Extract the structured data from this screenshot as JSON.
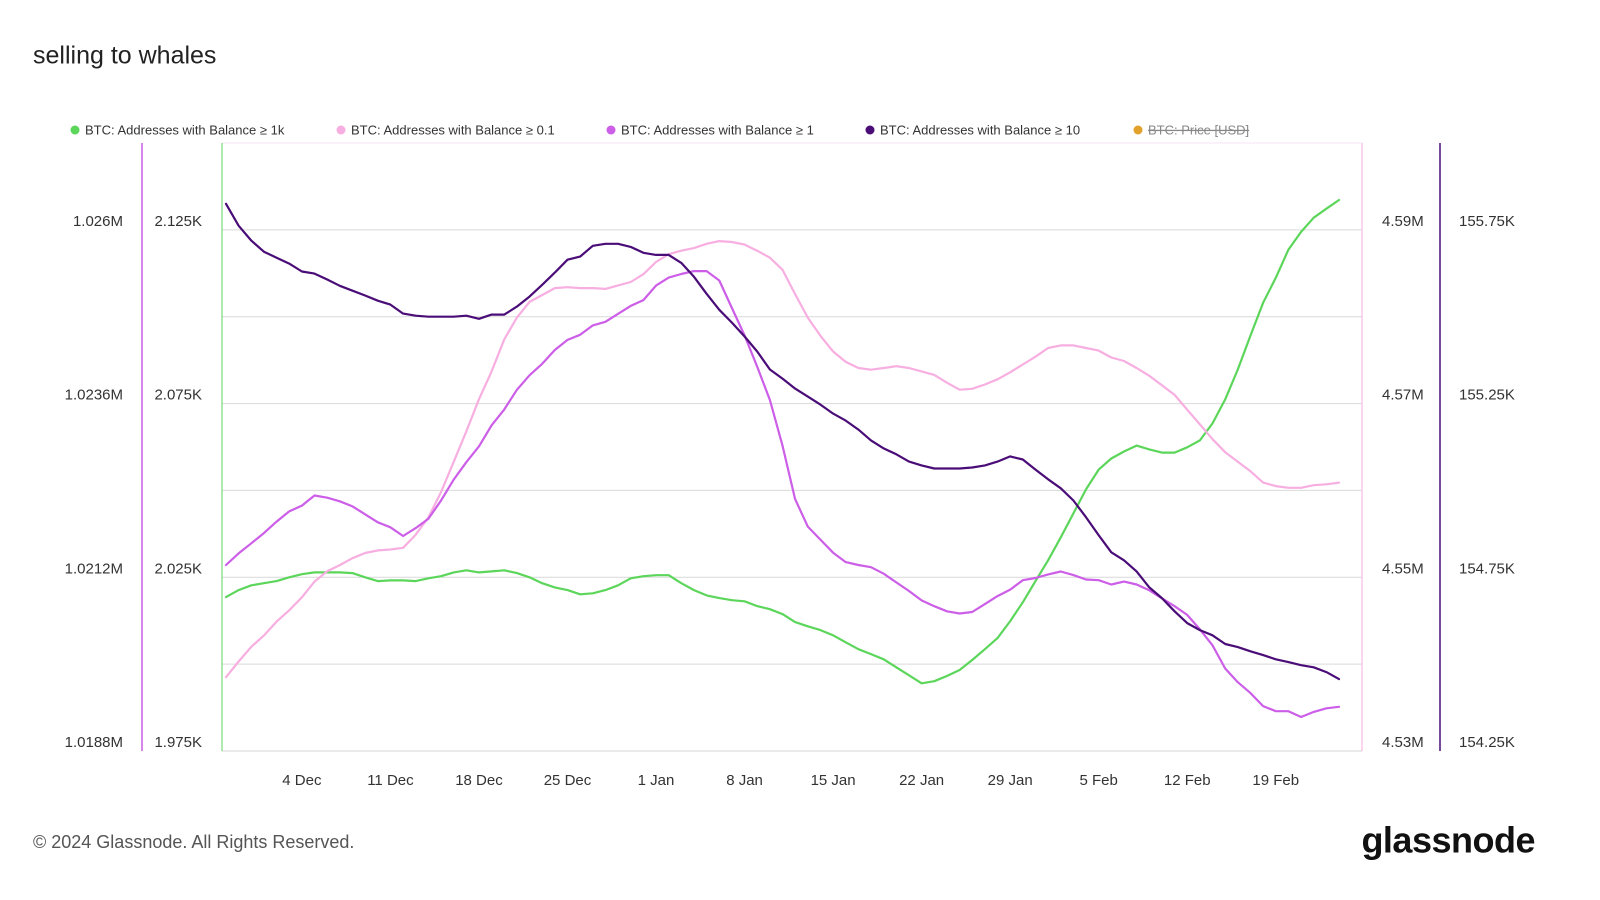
{
  "chart_data": {
    "type": "line",
    "title": "selling to whales",
    "categories": [
      null,
      null,
      null,
      null,
      null,
      null,
      "4 Dec",
      null,
      null,
      null,
      null,
      null,
      null,
      "11 Dec",
      null,
      null,
      null,
      null,
      null,
      null,
      "18 Dec",
      null,
      null,
      null,
      null,
      null,
      null,
      "25 Dec",
      null,
      null,
      null,
      null,
      null,
      null,
      "1 Jan",
      null,
      null,
      null,
      null,
      null,
      null,
      "8 Jan",
      null,
      null,
      null,
      null,
      null,
      null,
      "15 Jan",
      null,
      null,
      null,
      null,
      null,
      null,
      "22 Jan",
      null,
      null,
      null,
      null,
      null,
      null,
      "29 Jan",
      null,
      null,
      null,
      null,
      null,
      null,
      "5 Feb",
      null,
      null,
      null,
      null,
      null,
      null,
      "12 Feb",
      null,
      null,
      null,
      null,
      null,
      null,
      "19 Feb",
      null,
      null,
      null,
      null,
      null
    ],
    "axes": [
      {
        "lim": [
          1018800,
          1027200
        ],
        "ticks": [
          {
            "value": 1018800,
            "label": "1.0188M"
          },
          {
            "value": 1021200,
            "label": "1.0212M"
          },
          {
            "value": 1023600,
            "label": "1.0236M"
          },
          {
            "value": 1026000,
            "label": "1.026M"
          }
        ]
      },
      {
        "lim": [
          1975,
          2150
        ],
        "ticks": [
          {
            "value": 1975,
            "label": "1.975K"
          },
          {
            "value": 2025,
            "label": "2.025K"
          },
          {
            "value": 2075,
            "label": "2.075K"
          },
          {
            "value": 2125,
            "label": "2.125K"
          }
        ]
      },
      {
        "lim": [
          4530000,
          4600000
        ],
        "ticks": [
          {
            "value": 4530000,
            "label": "4.53M"
          },
          {
            "value": 4550000,
            "label": "4.55M"
          },
          {
            "value": 4570000,
            "label": "4.57M"
          },
          {
            "value": 4590000,
            "label": "4.59M"
          }
        ]
      },
      {
        "lim": [
          154250,
          156000
        ],
        "ticks": [
          {
            "value": 154250,
            "label": "154.25K"
          },
          {
            "value": 154750,
            "label": "154.75K"
          },
          {
            "value": 155250,
            "label": "155.25K"
          },
          {
            "value": 155750,
            "label": "155.75K"
          }
        ]
      }
    ],
    "series": [
      {
        "name": "BTC: Addresses with Balance ≥ 1k",
        "color": "#5cd65a",
        "axis": 1,
        "values": [
          2019.3,
          2021.3,
          2022.7,
          2023.3,
          2023.9,
          2025.0,
          2025.9,
          2026.4,
          2026.4,
          2026.4,
          2026.2,
          2025.0,
          2023.9,
          2024.1,
          2024.1,
          2023.9,
          2024.7,
          2025.3,
          2026.4,
          2027.0,
          2026.4,
          2026.7,
          2027.0,
          2026.2,
          2025.0,
          2023.3,
          2022.1,
          2021.3,
          2020.1,
          2020.4,
          2021.3,
          2022.7,
          2024.7,
          2025.3,
          2025.6,
          2025.6,
          2023.3,
          2021.3,
          2019.8,
          2019.0,
          2018.4,
          2018.1,
          2016.7,
          2015.8,
          2014.4,
          2012.1,
          2010.9,
          2009.8,
          2008.3,
          2006.3,
          2004.3,
          2002.9,
          2001.4,
          1999.1,
          1996.8,
          1994.5,
          1995.1,
          1996.6,
          1998.3,
          2001.2,
          2004.3,
          2007.5,
          2012.4,
          2017.8,
          2023.9,
          2029.9,
          2036.5,
          2043.4,
          2050.3,
          2056.0,
          2059.2,
          2061.2,
          2062.9,
          2061.8,
          2060.9,
          2060.9,
          2062.4,
          2064.4,
          2069.3,
          2076.2,
          2084.8,
          2094.6,
          2104.0,
          2111.2,
          2119.3,
          2124.4,
          2128.5,
          2131.1,
          2133.6
        ]
      },
      {
        "name": "BTC: Addresses with Balance ≥ 0.1",
        "color": "#f7aee0",
        "axis": 2,
        "values": [
          4538500,
          4540300,
          4542000,
          4543300,
          4544900,
          4546200,
          4547700,
          4549500,
          4550700,
          4551400,
          4552200,
          4552800,
          4553100,
          4553200,
          4553400,
          4554900,
          4556900,
          4559800,
          4563300,
          4566800,
          4570500,
          4573700,
          4577400,
          4579900,
          4581700,
          4582500,
          4583300,
          4583400,
          4583300,
          4583300,
          4583200,
          4583600,
          4584000,
          4584900,
          4586300,
          4587200,
          4587600,
          4587900,
          4588400,
          4588700,
          4588600,
          4588300,
          4587600,
          4586800,
          4585400,
          4582600,
          4579900,
          4577800,
          4576000,
          4574800,
          4574100,
          4573900,
          4574100,
          4574300,
          4574100,
          4573700,
          4573300,
          4572400,
          4571600,
          4571700,
          4572200,
          4572800,
          4573600,
          4574500,
          4575400,
          4576400,
          4576700,
          4576700,
          4576400,
          4576100,
          4575300,
          4574900,
          4574100,
          4573200,
          4572100,
          4571000,
          4569300,
          4567600,
          4565900,
          4564400,
          4563300,
          4562200,
          4560900,
          4560500,
          4560300,
          4560300,
          4560600,
          4560700,
          4560900
        ]
      },
      {
        "name": "BTC: Addresses with Balance ≥ 1",
        "color": "#cc5ee8",
        "axis": 0,
        "values": [
          1021370,
          1021530,
          1021670,
          1021810,
          1021970,
          1022110,
          1022190,
          1022330,
          1022300,
          1022250,
          1022180,
          1022070,
          1021960,
          1021890,
          1021770,
          1021880,
          1022010,
          1022260,
          1022550,
          1022790,
          1023010,
          1023300,
          1023520,
          1023790,
          1023990,
          1024150,
          1024340,
          1024480,
          1024550,
          1024680,
          1024730,
          1024840,
          1024950,
          1025030,
          1025230,
          1025340,
          1025390,
          1025430,
          1025430,
          1025300,
          1024920,
          1024540,
          1024110,
          1023650,
          1023020,
          1022280,
          1021900,
          1021720,
          1021540,
          1021410,
          1021370,
          1021340,
          1021250,
          1021130,
          1021010,
          1020880,
          1020800,
          1020730,
          1020700,
          1020720,
          1020830,
          1020940,
          1021030,
          1021160,
          1021190,
          1021240,
          1021280,
          1021230,
          1021170,
          1021160,
          1021100,
          1021140,
          1021100,
          1021020,
          1020910,
          1020800,
          1020680,
          1020480,
          1020260,
          1019940,
          1019750,
          1019600,
          1019420,
          1019350,
          1019350,
          1019270,
          1019340,
          1019390,
          1019410
        ]
      },
      {
        "name": "BTC: Addresses with Balance ≥ 10",
        "color": "#4a0d78",
        "axis": 3,
        "values": [
          155825,
          155762,
          155719,
          155687,
          155670,
          155653,
          155630,
          155624,
          155607,
          155589,
          155575,
          155561,
          155546,
          155535,
          155509,
          155503,
          155500,
          155500,
          155500,
          155503,
          155494,
          155506,
          155506,
          155529,
          155558,
          155592,
          155627,
          155664,
          155673,
          155704,
          155710,
          155710,
          155701,
          155684,
          155678,
          155678,
          155655,
          155615,
          155566,
          155520,
          155483,
          155443,
          155400,
          155348,
          155322,
          155293,
          155270,
          155247,
          155221,
          155201,
          155175,
          155144,
          155121,
          155104,
          155083,
          155072,
          155063,
          155063,
          155063,
          155066,
          155072,
          155083,
          155098,
          155089,
          155060,
          155032,
          155006,
          154971,
          154923,
          154871,
          154822,
          154799,
          154767,
          154721,
          154690,
          154652,
          154618,
          154598,
          154583,
          154558,
          154549,
          154537,
          154526,
          154514,
          154506,
          154497,
          154491,
          154477,
          154457
        ]
      },
      {
        "name": "BTC: Price [USD]",
        "color": "#e2a12b",
        "hidden": true
      }
    ],
    "grid": true,
    "legend": "top-left"
  },
  "footer": "© 2024 Glassnode. All Rights Reserved.",
  "brand": "glassnode"
}
